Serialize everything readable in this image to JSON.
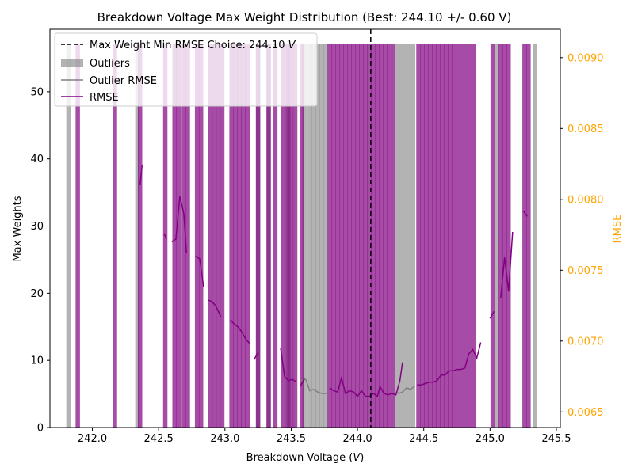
{
  "chart_data": {
    "type": "bar",
    "title": "Breakdown Voltage Max Weight Distribution (Best: 244.10 +/- 0.60 V)",
    "xlabel_main": "Breakdown Voltage (",
    "xlabel_var": "V",
    "xlabel_end": ")",
    "ylabel": "Max Weights",
    "ylabel_right": "RMSE",
    "xlim": [
      241.68,
      245.53
    ],
    "ylim": [
      0,
      59.3
    ],
    "ylim_right": [
      0.00639,
      0.0092
    ],
    "xticks": [
      242.0,
      242.5,
      243.0,
      243.5,
      244.0,
      244.5,
      245.0,
      245.5
    ],
    "xtick_labels": [
      "242.0",
      "242.5",
      "243.0",
      "243.5",
      "244.0",
      "244.5",
      "245.0",
      "245.5"
    ],
    "yticks": [
      0,
      10,
      20,
      30,
      40,
      50
    ],
    "ytick_labels": [
      "0",
      "10",
      "20",
      "30",
      "40",
      "50"
    ],
    "yticks_right": [
      0.0065,
      0.007,
      0.0075,
      0.008,
      0.0085,
      0.009
    ],
    "ytick_labels_right": [
      "0.0065",
      "0.0070",
      "0.0075",
      "0.0080",
      "0.0085",
      "0.0090"
    ],
    "vline_x": 244.1,
    "legend": {
      "placement": "upper-left",
      "vline_label_main": "Max Weight Min RMSE Choice: 244.10 ",
      "vline_label_var": "V",
      "outliers_label": "Outliers",
      "outlier_rmse_label": "Outlier RMSE",
      "rmse_label": "RMSE"
    },
    "colors": {
      "main": "#800080",
      "outlier": "#808080",
      "vline": "#000000",
      "right_axis": "#ffa500"
    },
    "bar_height": 57.1,
    "bar_half_width": 0.0165,
    "outlier_bars": [
      241.82,
      242.34,
      243.25,
      243.33,
      243.48,
      243.6,
      243.64,
      243.67,
      243.7,
      243.73,
      243.76,
      244.3,
      244.33,
      244.36,
      244.39,
      244.42,
      245.05,
      245.34
    ],
    "main_bars": [
      241.89,
      242.17,
      242.36,
      242.55,
      242.62,
      242.65,
      242.69,
      242.72,
      242.79,
      242.82,
      242.89,
      242.92,
      242.95,
      242.98,
      243.05,
      243.08,
      243.11,
      243.14,
      243.17,
      243.25,
      243.33,
      243.38,
      243.44,
      243.47,
      243.5,
      243.53,
      243.58,
      243.79,
      243.82,
      243.85,
      243.88,
      243.91,
      243.94,
      243.97,
      244.0,
      244.03,
      244.06,
      244.09,
      244.12,
      244.15,
      244.18,
      244.21,
      244.24,
      244.27,
      244.46,
      244.49,
      244.52,
      244.55,
      244.58,
      244.61,
      244.64,
      244.67,
      244.7,
      244.73,
      244.76,
      244.79,
      244.82,
      244.85,
      244.88,
      245.02,
      245.08,
      245.11,
      245.14,
      245.26,
      245.29
    ],
    "rmse_segments": [
      [
        [
          242.36,
          0.0081
        ],
        [
          242.375,
          0.00824
        ]
      ],
      [
        [
          242.54,
          0.00776
        ],
        [
          242.56,
          0.00772
        ]
      ],
      [
        [
          242.6,
          0.0077
        ],
        [
          242.63,
          0.00772
        ],
        [
          242.66,
          0.00802
        ],
        [
          242.69,
          0.0079
        ],
        [
          242.71,
          0.00762
        ]
      ],
      [
        [
          242.78,
          0.0076
        ],
        [
          242.81,
          0.00758
        ],
        [
          242.84,
          0.00738
        ]
      ],
      [
        [
          242.87,
          0.00729
        ],
        [
          242.9,
          0.00728
        ],
        [
          242.93,
          0.00725
        ],
        [
          242.97,
          0.00717
        ]
      ],
      [
        [
          243.04,
          0.00715
        ],
        [
          243.07,
          0.00712
        ],
        [
          243.1,
          0.0071
        ],
        [
          243.13,
          0.00706
        ],
        [
          243.16,
          0.00701
        ],
        [
          243.19,
          0.00698
        ]
      ],
      [
        [
          243.22,
          0.00687
        ],
        [
          243.25,
          0.00692
        ]
      ],
      [
        [
          243.42,
          0.00695
        ],
        [
          243.45,
          0.00675
        ],
        [
          243.48,
          0.00672
        ],
        [
          243.51,
          0.00673
        ],
        [
          243.54,
          0.00671
        ]
      ],
      [
        [
          243.57,
          0.00668
        ],
        [
          243.6,
          0.00674
        ]
      ],
      [
        [
          243.79,
          0.00667
        ],
        [
          243.82,
          0.00665
        ],
        [
          243.85,
          0.00664
        ],
        [
          243.88,
          0.00674
        ],
        [
          243.91,
          0.00663
        ],
        [
          243.94,
          0.00665
        ],
        [
          243.97,
          0.00664
        ],
        [
          244.0,
          0.00661
        ],
        [
          244.03,
          0.00665
        ],
        [
          244.06,
          0.00661
        ],
        [
          244.09,
          0.00661
        ],
        [
          244.12,
          0.00663
        ],
        [
          244.15,
          0.00661
        ],
        [
          244.17,
          0.00668
        ],
        [
          244.2,
          0.00663
        ],
        [
          244.23,
          0.00662
        ],
        [
          244.26,
          0.00663
        ],
        [
          244.29,
          0.00662
        ],
        [
          244.32,
          0.00672
        ],
        [
          244.34,
          0.00685
        ]
      ],
      [
        [
          244.45,
          0.00669
        ],
        [
          244.48,
          0.00669
        ],
        [
          244.51,
          0.0067
        ],
        [
          244.54,
          0.00671
        ],
        [
          244.57,
          0.00671
        ],
        [
          244.6,
          0.00672
        ],
        [
          244.63,
          0.00676
        ],
        [
          244.66,
          0.00676
        ],
        [
          244.69,
          0.00679
        ],
        [
          244.72,
          0.00679
        ],
        [
          244.75,
          0.0068
        ],
        [
          244.78,
          0.0068
        ],
        [
          244.81,
          0.00681
        ],
        [
          244.84,
          0.00691
        ],
        [
          244.87,
          0.00694
        ],
        [
          244.9,
          0.00688
        ],
        [
          244.93,
          0.00699
        ]
      ],
      [
        [
          245.0,
          0.00716
        ],
        [
          245.03,
          0.00721
        ]
      ],
      [
        [
          245.08,
          0.0073
        ],
        [
          245.11,
          0.00759
        ],
        [
          245.14,
          0.00735
        ],
        [
          245.17,
          0.00777
        ]
      ],
      [
        [
          245.25,
          0.00792
        ],
        [
          245.28,
          0.00788
        ]
      ]
    ],
    "outlier_rmse_segments": [
      [
        [
          243.57,
          0.00672
        ],
        [
          243.61,
          0.00673
        ],
        [
          243.64,
          0.00665
        ],
        [
          243.67,
          0.00666
        ],
        [
          243.7,
          0.00664
        ],
        [
          243.73,
          0.00663
        ],
        [
          243.77,
          0.00663
        ]
      ],
      [
        [
          244.29,
          0.00664
        ],
        [
          244.31,
          0.00663
        ],
        [
          244.34,
          0.00664
        ],
        [
          244.37,
          0.00667
        ],
        [
          244.4,
          0.00666
        ],
        [
          244.43,
          0.00668
        ]
      ]
    ]
  }
}
